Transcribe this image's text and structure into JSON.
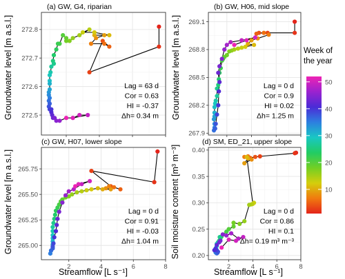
{
  "labels": {
    "xlabel": "Streamflow [L s⁻¹]",
    "ylabel_gw": "Groundwater level [m a.s.l.]",
    "ylabel_sm": "Soil moisture content [m³ m⁻³]"
  },
  "colorbar": {
    "title_line1": "Week of",
    "title_line2": "the year",
    "ticks": [
      "50",
      "40",
      "30",
      "20",
      "10"
    ],
    "range": [
      1,
      52
    ],
    "colors": [
      "#e4241a",
      "#f07a0f",
      "#d4ce0c",
      "#72cf24",
      "#22cc64",
      "#19c7c4",
      "#2d7fe0",
      "#4b2bd6",
      "#9b22cf",
      "#ee23b4"
    ]
  },
  "chart_data": [
    {
      "type": "scatter",
      "title": "(a) GW, G4, riparian",
      "xlim": [
        0.5,
        8
      ],
      "ylim": [
        272.43,
        272.86
      ],
      "xticks": [],
      "yticks": [
        272.5,
        272.6,
        272.7,
        272.8
      ],
      "ytick_labels": [
        "272.5",
        "272.6",
        "272.7",
        "272.8"
      ],
      "stats": {
        "lag": "Lag = 63 d",
        "cor": "Cor = 0.63",
        "hi": "HI = -0.37",
        "dh": "Δh= 0.34 m"
      },
      "points": [
        [
          7.6,
          272.81,
          1
        ],
        [
          7.6,
          272.74,
          2
        ],
        [
          3.4,
          272.65,
          3
        ],
        [
          4.2,
          272.76,
          4
        ],
        [
          4.6,
          272.74,
          5
        ],
        [
          4.3,
          272.75,
          6
        ],
        [
          3.5,
          272.75,
          7
        ],
        [
          3.8,
          272.77,
          8
        ],
        [
          4.3,
          272.78,
          9
        ],
        [
          3.7,
          272.78,
          10
        ],
        [
          4.6,
          272.78,
          11
        ],
        [
          3.7,
          272.79,
          12
        ],
        [
          3.0,
          272.79,
          13
        ],
        [
          3.4,
          272.8,
          14
        ],
        [
          2.8,
          272.78,
          15
        ],
        [
          2.4,
          272.77,
          16
        ],
        [
          2.2,
          272.76,
          17
        ],
        [
          2.0,
          272.76,
          18
        ],
        [
          2.0,
          272.77,
          19
        ],
        [
          1.8,
          272.78,
          20
        ],
        [
          1.6,
          272.75,
          21
        ],
        [
          1.5,
          272.75,
          22
        ],
        [
          1.4,
          272.73,
          23
        ],
        [
          1.25,
          272.71,
          24
        ],
        [
          1.2,
          272.69,
          25
        ],
        [
          1.25,
          272.68,
          26
        ],
        [
          1.1,
          272.67,
          27
        ],
        [
          1.05,
          272.65,
          28
        ],
        [
          1.0,
          272.64,
          29
        ],
        [
          1.0,
          272.62,
          30
        ],
        [
          1.0,
          272.61,
          31
        ],
        [
          1.0,
          272.59,
          32
        ],
        [
          0.95,
          272.58,
          33
        ],
        [
          0.95,
          272.57,
          34
        ],
        [
          1.0,
          272.56,
          35
        ],
        [
          0.95,
          272.55,
          36
        ],
        [
          1.0,
          272.54,
          37
        ],
        [
          0.95,
          272.53,
          38
        ],
        [
          1.0,
          272.52,
          39
        ],
        [
          1.1,
          272.52,
          40
        ],
        [
          1.1,
          272.51,
          41
        ],
        [
          1.15,
          272.5,
          42
        ],
        [
          1.2,
          272.49,
          43
        ],
        [
          1.3,
          272.49,
          44
        ],
        [
          1.4,
          272.48,
          45
        ],
        [
          1.6,
          272.48,
          46
        ],
        [
          2.0,
          272.49,
          47
        ],
        [
          2.4,
          272.49,
          48
        ],
        [
          3.3,
          272.5,
          49
        ],
        [
          2.8,
          272.5,
          50
        ],
        [
          2.4,
          272.49,
          51
        ],
        [
          2.0,
          272.49,
          52
        ]
      ]
    },
    {
      "type": "scatter",
      "title": "(b) GW, H06, mid slope",
      "xlim": [
        0.5,
        8
      ],
      "ylim": [
        267.88,
        269.2
      ],
      "xticks": [],
      "yticks": [
        267.9,
        268.2,
        268.5,
        268.8,
        269.1
      ],
      "ytick_labels": [
        "267.9",
        "268.2",
        "268.5",
        "268.8",
        "269.1"
      ],
      "stats": {
        "lag": "Lag = 0 d",
        "cor": "Cor = 0.9",
        "hi": "HI = 0.02",
        "dh": "Δh= 1.25 m"
      },
      "points": [
        [
          7.5,
          269.1,
          1
        ],
        [
          7.5,
          268.98,
          2
        ],
        [
          5.3,
          268.98,
          3
        ],
        [
          4.6,
          268.98,
          4
        ],
        [
          4.4,
          268.97,
          5
        ],
        [
          5.0,
          268.98,
          6
        ],
        [
          5.4,
          268.96,
          7
        ],
        [
          4.5,
          268.92,
          8
        ],
        [
          4.0,
          268.9,
          9
        ],
        [
          3.7,
          268.86,
          10
        ],
        [
          4.2,
          268.85,
          11
        ],
        [
          3.5,
          268.83,
          12
        ],
        [
          3.2,
          268.82,
          13
        ],
        [
          2.9,
          268.81,
          14
        ],
        [
          2.6,
          268.8,
          15
        ],
        [
          2.4,
          268.79,
          16
        ],
        [
          2.2,
          268.78,
          17
        ],
        [
          2.0,
          268.74,
          18
        ],
        [
          1.8,
          268.72,
          19
        ],
        [
          1.7,
          268.7,
          20
        ],
        [
          1.6,
          268.68,
          21
        ],
        [
          1.5,
          268.6,
          22
        ],
        [
          1.4,
          268.55,
          23
        ],
        [
          1.35,
          268.48,
          24
        ],
        [
          1.3,
          268.42,
          25
        ],
        [
          1.2,
          268.38,
          26
        ],
        [
          1.2,
          268.3,
          27
        ],
        [
          1.1,
          268.25,
          28
        ],
        [
          1.05,
          268.22,
          29
        ],
        [
          1.0,
          268.18,
          30
        ],
        [
          1.0,
          268.12,
          31
        ],
        [
          1.0,
          268.08,
          32
        ],
        [
          0.95,
          268.05,
          33
        ],
        [
          1.0,
          268.0,
          34
        ],
        [
          1.0,
          267.96,
          35
        ],
        [
          0.95,
          267.93,
          36
        ],
        [
          1.05,
          267.95,
          37
        ],
        [
          1.1,
          268.0,
          38
        ],
        [
          1.2,
          268.1,
          39
        ],
        [
          1.3,
          268.2,
          40
        ],
        [
          1.35,
          268.35,
          41
        ],
        [
          1.4,
          268.45,
          42
        ],
        [
          1.3,
          268.55,
          43
        ],
        [
          1.4,
          268.62,
          44
        ],
        [
          1.6,
          268.7,
          45
        ],
        [
          1.8,
          268.8,
          46
        ],
        [
          2.0,
          268.85,
          47
        ],
        [
          2.3,
          268.88,
          48
        ],
        [
          3.2,
          268.9,
          49
        ],
        [
          4.3,
          268.93,
          50
        ],
        [
          3.6,
          268.9,
          51
        ],
        [
          2.6,
          268.85,
          52
        ]
      ]
    },
    {
      "type": "scatter",
      "title": "(c) GW, H07, lower slope",
      "xlim": [
        0.3,
        8
      ],
      "ylim": [
        264.86,
        265.96
      ],
      "xticks": [
        2,
        4,
        6,
        8
      ],
      "yticks": [
        265.0,
        265.25,
        265.5,
        265.75
      ],
      "ytick_labels": [
        "265.00",
        "265.25",
        "265.50",
        "265.75"
      ],
      "stats": {
        "lag": "Lag = 0 d",
        "cor": "Cor = 0.91",
        "hi": "HI = -0.03",
        "dh": "Δh= 1.04 m"
      },
      "points": [
        [
          7.5,
          265.92,
          1
        ],
        [
          7.3,
          265.62,
          2
        ],
        [
          3.4,
          265.73,
          3
        ],
        [
          4.6,
          265.58,
          4
        ],
        [
          5.2,
          265.55,
          5
        ],
        [
          4.8,
          265.57,
          6
        ],
        [
          4.5,
          265.58,
          7
        ],
        [
          4.3,
          265.56,
          8
        ],
        [
          4.6,
          265.55,
          9
        ],
        [
          4.1,
          265.55,
          10
        ],
        [
          3.8,
          265.56,
          11
        ],
        [
          3.4,
          265.55,
          12
        ],
        [
          3.1,
          265.54,
          13
        ],
        [
          2.8,
          265.53,
          14
        ],
        [
          2.5,
          265.52,
          15
        ],
        [
          2.2,
          265.5,
          16
        ],
        [
          2.0,
          265.48,
          17
        ],
        [
          1.8,
          265.47,
          18
        ],
        [
          1.6,
          265.45,
          19
        ],
        [
          1.5,
          265.43,
          20
        ],
        [
          1.4,
          265.4,
          21
        ],
        [
          1.3,
          265.37,
          22
        ],
        [
          1.2,
          265.34,
          23
        ],
        [
          1.15,
          265.3,
          24
        ],
        [
          1.1,
          265.26,
          25
        ],
        [
          1.05,
          265.22,
          26
        ],
        [
          1.0,
          265.18,
          27
        ],
        [
          1.0,
          265.14,
          28
        ],
        [
          1.0,
          265.1,
          29
        ],
        [
          1.0,
          265.07,
          30
        ],
        [
          1.0,
          265.04,
          31
        ],
        [
          1.0,
          265.01,
          32
        ],
        [
          1.0,
          264.98,
          33
        ],
        [
          0.9,
          264.95,
          34
        ],
        [
          0.85,
          264.92,
          35
        ],
        [
          0.9,
          264.95,
          36
        ],
        [
          1.0,
          264.97,
          37
        ],
        [
          1.0,
          264.99,
          38
        ],
        [
          1.05,
          265.02,
          39
        ],
        [
          1.1,
          265.08,
          40
        ],
        [
          1.2,
          265.14,
          41
        ],
        [
          1.25,
          265.2,
          42
        ],
        [
          1.3,
          265.26,
          43
        ],
        [
          1.4,
          265.33,
          44
        ],
        [
          1.6,
          265.42,
          45
        ],
        [
          1.8,
          265.49,
          46
        ],
        [
          2.0,
          265.53,
          47
        ],
        [
          2.3,
          265.55,
          48
        ],
        [
          2.8,
          265.6,
          49
        ],
        [
          3.3,
          265.63,
          50
        ],
        [
          2.6,
          265.6,
          51
        ],
        [
          2.4,
          265.58,
          52
        ]
      ]
    },
    {
      "type": "scatter",
      "title": "(d) SM, ED_21, upper slope",
      "xlim": [
        0.3,
        8
      ],
      "ylim": [
        0.192,
        0.405
      ],
      "xticks": [
        2,
        4,
        6,
        8
      ],
      "yticks": [
        0.2,
        0.25,
        0.3,
        0.35,
        0.4
      ],
      "ytick_labels": [
        "0.20",
        "0.25",
        "0.30",
        "0.35",
        "0.40"
      ],
      "stats": {
        "lag": "Lag = 0 d",
        "cor": "Cor = 0.86",
        "hi": "HI = 0.1",
        "dh": "Δh= 0.19 m³ m⁻³"
      },
      "points": [
        [
          7.6,
          0.395,
          1
        ],
        [
          7.5,
          0.394,
          2
        ],
        [
          4.6,
          0.388,
          3
        ],
        [
          4.2,
          0.387,
          4
        ],
        [
          3.8,
          0.385,
          5
        ],
        [
          3.6,
          0.388,
          6
        ],
        [
          3.3,
          0.387,
          7
        ],
        [
          3.9,
          0.382,
          8
        ],
        [
          3.3,
          0.375,
          9
        ],
        [
          3.6,
          0.384,
          10
        ],
        [
          3.5,
          0.387,
          11
        ],
        [
          4.0,
          0.298,
          12
        ],
        [
          4.1,
          0.3,
          13
        ],
        [
          3.9,
          0.297,
          14
        ],
        [
          3.7,
          0.296,
          15
        ],
        [
          3.3,
          0.265,
          16
        ],
        [
          2.9,
          0.26,
          17
        ],
        [
          2.4,
          0.262,
          18
        ],
        [
          2.4,
          0.255,
          19
        ],
        [
          2.0,
          0.25,
          20
        ],
        [
          1.8,
          0.245,
          21
        ],
        [
          1.5,
          0.24,
          22
        ],
        [
          1.4,
          0.236,
          23
        ],
        [
          1.3,
          0.232,
          24
        ],
        [
          1.2,
          0.228,
          25
        ],
        [
          1.25,
          0.235,
          26
        ],
        [
          1.1,
          0.225,
          27
        ],
        [
          1.0,
          0.222,
          28
        ],
        [
          1.0,
          0.218,
          29
        ],
        [
          0.95,
          0.215,
          30
        ],
        [
          0.9,
          0.212,
          31
        ],
        [
          0.85,
          0.21,
          32
        ],
        [
          0.9,
          0.208,
          33
        ],
        [
          0.9,
          0.206,
          34
        ],
        [
          0.95,
          0.205,
          35
        ],
        [
          1.0,
          0.204,
          36
        ],
        [
          1.05,
          0.205,
          37
        ],
        [
          1.1,
          0.207,
          38
        ],
        [
          1.0,
          0.21,
          39
        ],
        [
          0.9,
          0.213,
          40
        ],
        [
          0.8,
          0.21,
          41
        ],
        [
          1.0,
          0.22,
          42
        ],
        [
          1.2,
          0.225,
          43
        ],
        [
          1.3,
          0.228,
          44
        ],
        [
          1.5,
          0.24,
          45
        ],
        [
          1.8,
          0.238,
          46
        ],
        [
          2.2,
          0.242,
          47
        ],
        [
          2.8,
          0.232,
          48
        ],
        [
          3.2,
          0.235,
          49
        ],
        [
          2.6,
          0.228,
          50
        ],
        [
          2.0,
          0.23,
          51
        ],
        [
          1.4,
          0.215,
          52
        ]
      ]
    }
  ]
}
